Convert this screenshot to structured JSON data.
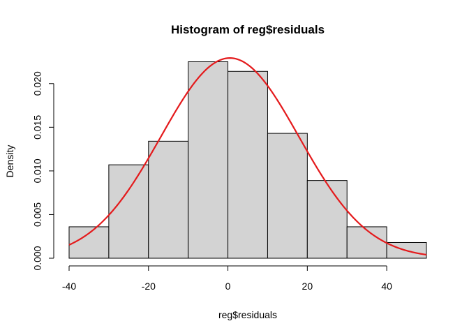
{
  "chart_data": {
    "type": "bar",
    "title": "Histogram of reg$residuals",
    "xlabel": "reg$residuals",
    "ylabel": "Density",
    "xlim": [
      -40,
      50
    ],
    "ylim": [
      0,
      0.0225
    ],
    "x_ticks": [
      "-40",
      "-20",
      "0",
      "20",
      "40"
    ],
    "y_ticks": [
      "0.000",
      "0.005",
      "0.010",
      "0.015",
      "0.020"
    ],
    "bins": [
      {
        "start": -40,
        "end": -30,
        "density": 0.0036
      },
      {
        "start": -30,
        "end": -20,
        "density": 0.0107
      },
      {
        "start": -20,
        "end": -10,
        "density": 0.0134
      },
      {
        "start": -10,
        "end": 0,
        "density": 0.0225
      },
      {
        "start": 0,
        "end": 10,
        "density": 0.0214
      },
      {
        "start": 10,
        "end": 20,
        "density": 0.0143
      },
      {
        "start": 20,
        "end": 30,
        "density": 0.0089
      },
      {
        "start": 30,
        "end": 40,
        "density": 0.0036
      },
      {
        "start": 40,
        "end": 50,
        "density": 0.0018
      }
    ],
    "density_curve": {
      "color": "#e41a1c",
      "mean": 0.5,
      "sd": 17.4
    },
    "bar_fill": "#d3d3d3",
    "bar_stroke": "#000000",
    "grid": false
  }
}
